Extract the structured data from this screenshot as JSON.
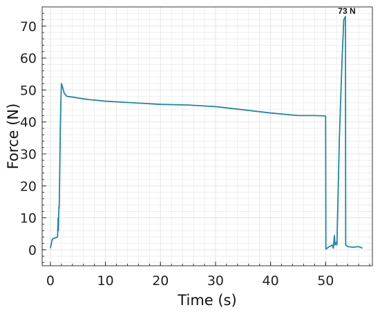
{
  "chart_data": {
    "type": "line",
    "title": "",
    "xlabel": "Time (s)",
    "ylabel": "Force (N)",
    "xlim": [
      -1.5,
      58.5
    ],
    "ylim": [
      -5,
      76
    ],
    "x_ticks": [
      0,
      10,
      20,
      30,
      40,
      50
    ],
    "y_ticks": [
      0,
      10,
      20,
      30,
      40,
      50,
      60,
      70
    ],
    "grid": true,
    "legend": "none",
    "colors": {
      "line": "#1f87a6",
      "grid": "#e4e4e4",
      "axis": "#333333"
    },
    "annotations": [
      {
        "text": "73 N",
        "x": 53.6,
        "y": 73
      }
    ],
    "series": [
      {
        "x": [
          0.0,
          0.3,
          0.5,
          1.0,
          1.3,
          1.4,
          1.45,
          1.55,
          1.6,
          1.7,
          1.8,
          1.9,
          2.0,
          2.2,
          2.5,
          3.0,
          4.0,
          5.0,
          7.0,
          10.0,
          15.0,
          20.0,
          25.0,
          28.0,
          30.0,
          35.0,
          40.0,
          45.0,
          48.0,
          49.8,
          50.0,
          50.05,
          50.5,
          51.2,
          51.4,
          51.6,
          51.7,
          52.0,
          52.05,
          52.2,
          52.5,
          53.0,
          53.3,
          53.6,
          53.65,
          54.0,
          55.0,
          56.0,
          56.7
        ],
        "y": [
          0.5,
          3.0,
          3.5,
          3.8,
          4.0,
          10.0,
          6.0,
          13.5,
          13.0,
          25.0,
          38.0,
          46.0,
          52.0,
          51.0,
          49.0,
          48.0,
          47.8,
          47.5,
          47.0,
          46.5,
          46.0,
          45.5,
          45.3,
          45.0,
          44.8,
          43.8,
          42.8,
          42.0,
          42.0,
          41.9,
          41.8,
          0.2,
          0.8,
          1.5,
          0.5,
          4.5,
          1.5,
          2.5,
          1.5,
          12.0,
          35.0,
          60.0,
          72.0,
          73.0,
          1.5,
          1.0,
          0.8,
          1.0,
          0.5
        ]
      }
    ]
  }
}
